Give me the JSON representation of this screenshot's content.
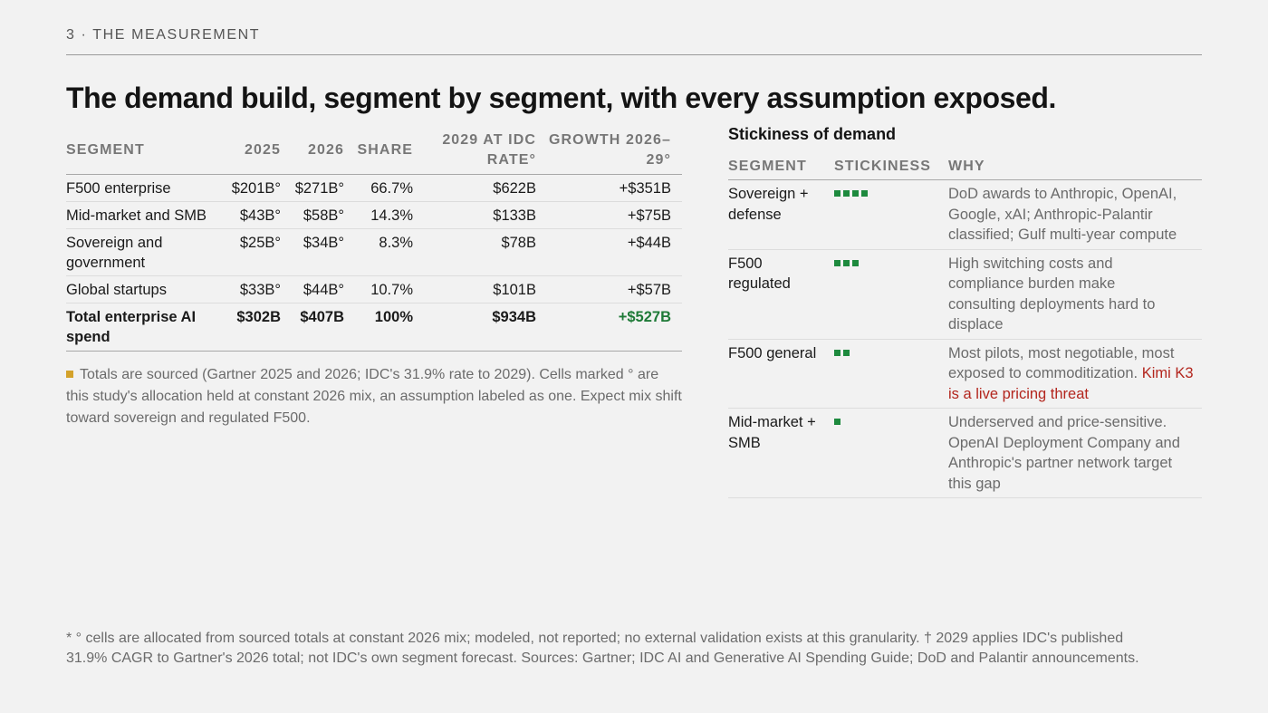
{
  "header": {
    "kicker": "3 · THE MEASUREMENT"
  },
  "title": "The demand build, segment by segment, with every assumption exposed.",
  "demand_table": {
    "columns": [
      "SEGMENT",
      "2025",
      "2026",
      "SHARE",
      "2029 AT IDC RATE°",
      "GROWTH 2026–29°"
    ],
    "rows": [
      {
        "segment": "F500 enterprise",
        "y2025": "$201B°",
        "y2026": "$271B°",
        "share": "66.7%",
        "y2029": "$622B",
        "growth": "+$351B"
      },
      {
        "segment": "Mid-market and SMB",
        "y2025": "$43B°",
        "y2026": "$58B°",
        "share": "14.3%",
        "y2029": "$133B",
        "growth": "+$75B"
      },
      {
        "segment": "Sovereign and government",
        "y2025": "$25B°",
        "y2026": "$34B°",
        "share": "8.3%",
        "y2029": "$78B",
        "growth": "+$44B"
      },
      {
        "segment": "Global startups",
        "y2025": "$33B°",
        "y2026": "$44B°",
        "share": "10.7%",
        "y2029": "$101B",
        "growth": "+$57B"
      }
    ],
    "total": {
      "segment": "Total enterprise AI spend",
      "y2025": "$302B",
      "y2026": "$407B",
      "share": "100%",
      "y2029": "$934B",
      "growth": "+$527B"
    },
    "note": "Totals are sourced (Gartner 2025 and 2026; IDC's 31.9% rate to 2029). Cells marked ° are this study's allocation held at constant 2026 mix, an assumption labeled as one. Expect mix shift toward sovereign and regulated F500.",
    "colors": {
      "note_marker": "#d4a22b",
      "growth_total": "#1e7a37"
    }
  },
  "stickiness": {
    "title": "Stickiness of demand",
    "columns": [
      "SEGMENT",
      "STICKINESS",
      "WHY"
    ],
    "rows": [
      {
        "segment": "Sovereign + defense",
        "level": 4,
        "why": "DoD awards to Anthropic, OpenAI, Google, xAI; Anthropic-Palantir classified; Gulf multi-year compute",
        "why_highlight": ""
      },
      {
        "segment": "F500 regulated",
        "level": 3,
        "why": "High switching costs and compliance burden make consulting deployments hard to displace",
        "why_highlight": ""
      },
      {
        "segment": "F500 general",
        "level": 2,
        "why": "Most pilots, most negotiable, most exposed to commoditization.",
        "why_highlight": "Kimi K3 is a live pricing threat"
      },
      {
        "segment": "Mid-market + SMB",
        "level": 1,
        "why": "Underserved and price-sensitive. OpenAI Deployment Company and Anthropic's partner network target this gap",
        "why_highlight": ""
      }
    ],
    "colors": {
      "level_dot": "#1e8a3e",
      "highlight": "#b3261e"
    }
  },
  "footnote": "* ° cells are allocated from sourced totals at constant 2026 mix; modeled, not reported; no external validation exists at this granularity. † 2029 applies IDC's published 31.9% CAGR to Gartner's 2026 total; not IDC's own segment forecast. Sources: Gartner; IDC AI and Generative AI Spending Guide; DoD and Palantir announcements."
}
